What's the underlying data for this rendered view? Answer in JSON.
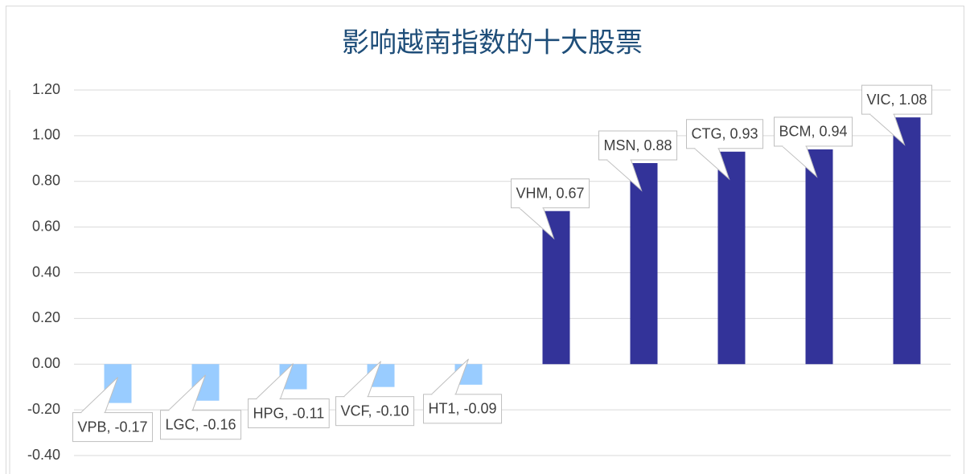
{
  "chart_data": {
    "type": "bar",
    "title": "影响越南指数的十大股票",
    "values": [
      -0.17,
      -0.16,
      -0.11,
      -0.1,
      -0.09,
      0.67,
      0.88,
      0.93,
      0.94,
      1.08
    ],
    "value_labels": [
      "VPB, -0.17",
      "LGC, -0.16",
      "HPG, -0.11",
      "VCF, -0.10",
      "HT1, -0.09",
      "VHM, 0.67",
      "MSN, 0.88",
      "CTG, 0.93",
      "BCM, 0.94",
      "VIC, 1.08"
    ],
    "colors": [
      "#99ccff",
      "#99ccff",
      "#99ccff",
      "#99ccff",
      "#99ccff",
      "#333399",
      "#333399",
      "#333399",
      "#333399",
      "#333399"
    ],
    "ylim": [
      -0.4,
      1.2
    ],
    "yticks": [
      {
        "value": -0.4,
        "label": "-0.40"
      },
      {
        "value": -0.2,
        "label": "-0.20"
      },
      {
        "value": 0,
        "label": "0.00"
      },
      {
        "value": 0.2,
        "label": "0.20"
      },
      {
        "value": 0.4,
        "label": "0.40"
      },
      {
        "value": 0.6,
        "label": "0.60"
      },
      {
        "value": 0.8,
        "label": "0.80"
      },
      {
        "value": 1.0,
        "label": "1.00"
      },
      {
        "value": 1.2,
        "label": "1.20"
      }
    ],
    "grid": true
  }
}
